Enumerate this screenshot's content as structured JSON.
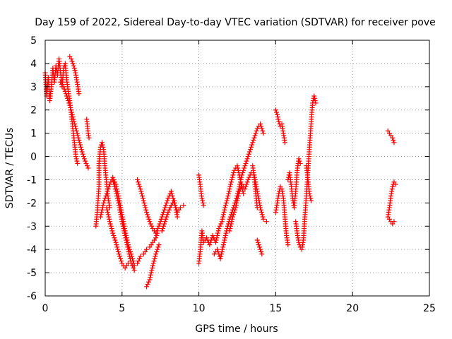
{
  "chart_data": {
    "type": "scatter",
    "title": "Day 159 of 2022, Sidereal Day-to-day VTEC variation (SDTVAR) for receiver pove",
    "xlabel": "GPS time / hours",
    "ylabel": "SDTVAR / TECUs",
    "xlim": [
      0,
      25
    ],
    "ylim": [
      -6,
      5
    ],
    "xticks": [
      0,
      5,
      10,
      15,
      20,
      25
    ],
    "yticks": [
      -6,
      -5,
      -4,
      -3,
      -2,
      -1,
      0,
      1,
      2,
      3,
      4,
      5
    ],
    "grid": true,
    "marker": "+",
    "color": "#ff0000",
    "series": [
      {
        "segments": [
          [
            [
              0.0,
              3.6
            ],
            [
              0.1,
              2.6
            ],
            [
              0.2,
              3.4
            ],
            [
              0.3,
              2.4
            ],
            [
              0.4,
              3.0
            ],
            [
              0.5,
              3.8
            ],
            [
              0.6,
              3.2
            ],
            [
              0.7,
              3.9
            ],
            [
              0.8,
              3.5
            ],
            [
              0.9,
              4.2
            ],
            [
              1.0,
              3.6
            ],
            [
              1.1,
              3.0
            ],
            [
              1.2,
              3.8
            ],
            [
              1.3,
              4.0
            ],
            [
              1.4,
              3.3
            ],
            [
              1.5,
              2.8
            ],
            [
              1.6,
              2.4
            ],
            [
              1.7,
              1.8
            ],
            [
              1.8,
              1.2
            ],
            [
              1.9,
              0.6
            ],
            [
              2.0,
              0.0
            ],
            [
              2.1,
              -0.3
            ]
          ],
          [
            [
              1.6,
              4.3
            ],
            [
              1.7,
              4.2
            ],
            [
              1.8,
              4.0
            ],
            [
              1.9,
              3.8
            ],
            [
              2.0,
              3.5
            ],
            [
              2.1,
              3.1
            ],
            [
              2.2,
              2.7
            ]
          ],
          [
            [
              1.0,
              3.2
            ],
            [
              1.2,
              3.0
            ],
            [
              1.4,
              2.6
            ],
            [
              1.6,
              2.2
            ],
            [
              1.8,
              1.7
            ],
            [
              2.0,
              1.2
            ],
            [
              2.2,
              0.7
            ],
            [
              2.4,
              0.2
            ],
            [
              2.6,
              -0.2
            ],
            [
              2.8,
              -0.5
            ]
          ],
          [
            [
              2.7,
              1.6
            ],
            [
              2.75,
              1.3
            ],
            [
              2.8,
              1.0
            ],
            [
              2.85,
              0.8
            ]
          ],
          [
            [
              3.3,
              -3.0
            ],
            [
              3.4,
              -2.3
            ],
            [
              3.5,
              -1.3
            ],
            [
              3.5,
              -0.3
            ],
            [
              3.6,
              0.4
            ],
            [
              3.7,
              0.6
            ],
            [
              3.8,
              0.3
            ],
            [
              3.9,
              -0.5
            ],
            [
              4.0,
              -1.2
            ],
            [
              4.1,
              -1.8
            ],
            [
              4.2,
              -2.2
            ]
          ],
          [
            [
              3.6,
              -2.6
            ],
            [
              3.8,
              -2.0
            ],
            [
              4.0,
              -1.6
            ],
            [
              4.2,
              -1.2
            ],
            [
              4.4,
              -0.9
            ],
            [
              4.6,
              -1.2
            ],
            [
              4.8,
              -1.8
            ],
            [
              5.0,
              -2.5
            ],
            [
              5.2,
              -3.2
            ],
            [
              5.4,
              -3.8
            ],
            [
              5.6,
              -4.2
            ],
            [
              5.8,
              -4.7
            ],
            [
              6.0,
              -4.6
            ],
            [
              6.2,
              -4.3
            ],
            [
              6.4,
              -4.2
            ],
            [
              6.6,
              -4.0
            ],
            [
              6.8,
              -3.9
            ],
            [
              7.0,
              -3.7
            ],
            [
              7.2,
              -3.5
            ],
            [
              7.3,
              -3.3
            ]
          ],
          [
            [
              4.0,
              -2.2
            ],
            [
              4.2,
              -2.8
            ],
            [
              4.4,
              -3.3
            ],
            [
              4.6,
              -3.7
            ],
            [
              4.8,
              -4.2
            ],
            [
              5.0,
              -4.6
            ],
            [
              5.2,
              -4.8
            ],
            [
              5.4,
              -4.6
            ]
          ],
          [
            [
              4.4,
              -1.0
            ],
            [
              4.6,
              -1.5
            ],
            [
              4.8,
              -2.1
            ],
            [
              5.0,
              -2.8
            ],
            [
              5.2,
              -3.4
            ],
            [
              5.4,
              -4.0
            ],
            [
              5.6,
              -4.6
            ],
            [
              5.8,
              -4.9
            ]
          ],
          [
            [
              6.0,
              -1.0
            ],
            [
              6.2,
              -1.4
            ],
            [
              6.4,
              -1.9
            ],
            [
              6.6,
              -2.4
            ],
            [
              6.8,
              -2.8
            ],
            [
              7.0,
              -3.1
            ],
            [
              7.2,
              -3.3
            ],
            [
              7.4,
              -3.0
            ],
            [
              7.6,
              -2.6
            ],
            [
              7.8,
              -2.2
            ],
            [
              8.0,
              -1.8
            ],
            [
              8.2,
              -1.5
            ],
            [
              8.4,
              -2.0
            ],
            [
              8.6,
              -2.4
            ],
            [
              8.8,
              -2.2
            ],
            [
              9.0,
              -2.1
            ]
          ],
          [
            [
              6.6,
              -5.6
            ],
            [
              6.8,
              -5.3
            ],
            [
              7.0,
              -4.7
            ],
            [
              7.2,
              -4.2
            ],
            [
              7.4,
              -3.8
            ]
          ],
          [
            [
              7.6,
              -3.2
            ],
            [
              7.8,
              -2.8
            ],
            [
              8.0,
              -2.4
            ],
            [
              8.2,
              -2.1
            ],
            [
              8.4,
              -1.9
            ],
            [
              8.6,
              -2.6
            ]
          ],
          [
            [
              10.0,
              -0.8
            ],
            [
              10.1,
              -1.3
            ],
            [
              10.2,
              -1.8
            ],
            [
              10.3,
              -2.1
            ]
          ],
          [
            [
              10.0,
              -4.6
            ],
            [
              10.1,
              -4.0
            ],
            [
              10.2,
              -3.2
            ],
            [
              10.3,
              -3.7
            ],
            [
              10.5,
              -3.5
            ],
            [
              10.7,
              -3.8
            ],
            [
              10.9,
              -3.4
            ],
            [
              11.1,
              -3.7
            ],
            [
              11.3,
              -3.1
            ],
            [
              11.5,
              -2.8
            ],
            [
              11.7,
              -2.2
            ],
            [
              11.9,
              -1.7
            ],
            [
              12.1,
              -1.1
            ],
            [
              12.3,
              -0.6
            ],
            [
              12.5,
              -0.4
            ],
            [
              12.7,
              -1.0
            ],
            [
              12.9,
              -1.6
            ]
          ],
          [
            [
              11.0,
              -4.2
            ],
            [
              11.2,
              -4.0
            ],
            [
              11.4,
              -4.4
            ],
            [
              11.6,
              -3.8
            ],
            [
              11.8,
              -3.2
            ],
            [
              12.0,
              -2.7
            ],
            [
              12.2,
              -2.3
            ],
            [
              12.4,
              -1.9
            ],
            [
              12.6,
              -1.4
            ],
            [
              12.8,
              -0.8
            ],
            [
              13.0,
              -0.4
            ],
            [
              13.2,
              0.0
            ],
            [
              13.4,
              0.4
            ],
            [
              13.6,
              0.8
            ],
            [
              13.8,
              1.2
            ],
            [
              14.0,
              1.4
            ],
            [
              14.1,
              1.2
            ],
            [
              14.2,
              1.0
            ]
          ],
          [
            [
              12.0,
              -3.2
            ],
            [
              12.2,
              -2.6
            ],
            [
              12.4,
              -2.2
            ],
            [
              12.6,
              -1.6
            ],
            [
              12.8,
              -1.2
            ],
            [
              13.0,
              -1.4
            ],
            [
              13.2,
              -1.0
            ],
            [
              13.4,
              -0.7
            ],
            [
              13.6,
              -0.8
            ],
            [
              13.8,
              -1.5
            ],
            [
              14.0,
              -2.2
            ],
            [
              14.2,
              -2.7
            ],
            [
              14.4,
              -2.8
            ]
          ],
          [
            [
              13.5,
              -0.4
            ],
            [
              13.6,
              -0.9
            ],
            [
              13.7,
              -1.6
            ],
            [
              13.8,
              -2.2
            ]
          ],
          [
            [
              13.8,
              -3.6
            ],
            [
              13.9,
              -3.8
            ],
            [
              14.0,
              -4.0
            ],
            [
              14.1,
              -4.2
            ]
          ],
          [
            [
              15.0,
              2.0
            ],
            [
              15.1,
              1.8
            ],
            [
              15.2,
              1.5
            ],
            [
              15.3,
              1.3
            ],
            [
              15.4,
              1.4
            ],
            [
              15.5,
              1.0
            ],
            [
              15.6,
              0.6
            ]
          ],
          [
            [
              15.0,
              -2.4
            ],
            [
              15.1,
              -2.0
            ],
            [
              15.2,
              -1.6
            ],
            [
              15.3,
              -1.3
            ],
            [
              15.4,
              -1.4
            ],
            [
              15.5,
              -1.8
            ],
            [
              15.6,
              -2.6
            ],
            [
              15.7,
              -3.4
            ],
            [
              15.8,
              -3.8
            ]
          ],
          [
            [
              15.8,
              -1.0
            ],
            [
              15.9,
              -0.7
            ],
            [
              16.0,
              -1.2
            ],
            [
              16.1,
              -1.8
            ],
            [
              16.2,
              -2.2
            ],
            [
              16.3,
              -1.5
            ],
            [
              16.4,
              -0.6
            ],
            [
              16.5,
              -0.1
            ],
            [
              16.6,
              -0.3
            ]
          ],
          [
            [
              16.3,
              -2.8
            ],
            [
              16.4,
              -3.3
            ],
            [
              16.5,
              -3.7
            ],
            [
              16.6,
              -3.9
            ],
            [
              16.7,
              -4.0
            ],
            [
              16.8,
              -3.6
            ],
            [
              16.9,
              -2.6
            ],
            [
              17.0,
              -1.6
            ],
            [
              17.1,
              -0.6
            ],
            [
              17.2,
              0.4
            ],
            [
              17.3,
              1.4
            ],
            [
              17.4,
              2.3
            ],
            [
              17.5,
              2.6
            ],
            [
              17.6,
              2.3
            ]
          ],
          [
            [
              17.0,
              -0.4
            ],
            [
              17.1,
              -1.0
            ],
            [
              17.2,
              -1.6
            ],
            [
              17.3,
              -1.9
            ]
          ],
          [
            [
              22.3,
              1.1
            ],
            [
              22.4,
              1.0
            ],
            [
              22.5,
              0.9
            ],
            [
              22.6,
              0.8
            ],
            [
              22.7,
              0.6
            ]
          ],
          [
            [
              22.3,
              -2.6
            ],
            [
              22.4,
              -2.2
            ],
            [
              22.5,
              -1.7
            ],
            [
              22.6,
              -1.3
            ],
            [
              22.7,
              -1.1
            ],
            [
              22.8,
              -1.2
            ]
          ],
          [
            [
              22.4,
              -2.7
            ],
            [
              22.5,
              -2.8
            ],
            [
              22.6,
              -2.9
            ],
            [
              22.7,
              -2.8
            ]
          ]
        ]
      }
    ]
  }
}
